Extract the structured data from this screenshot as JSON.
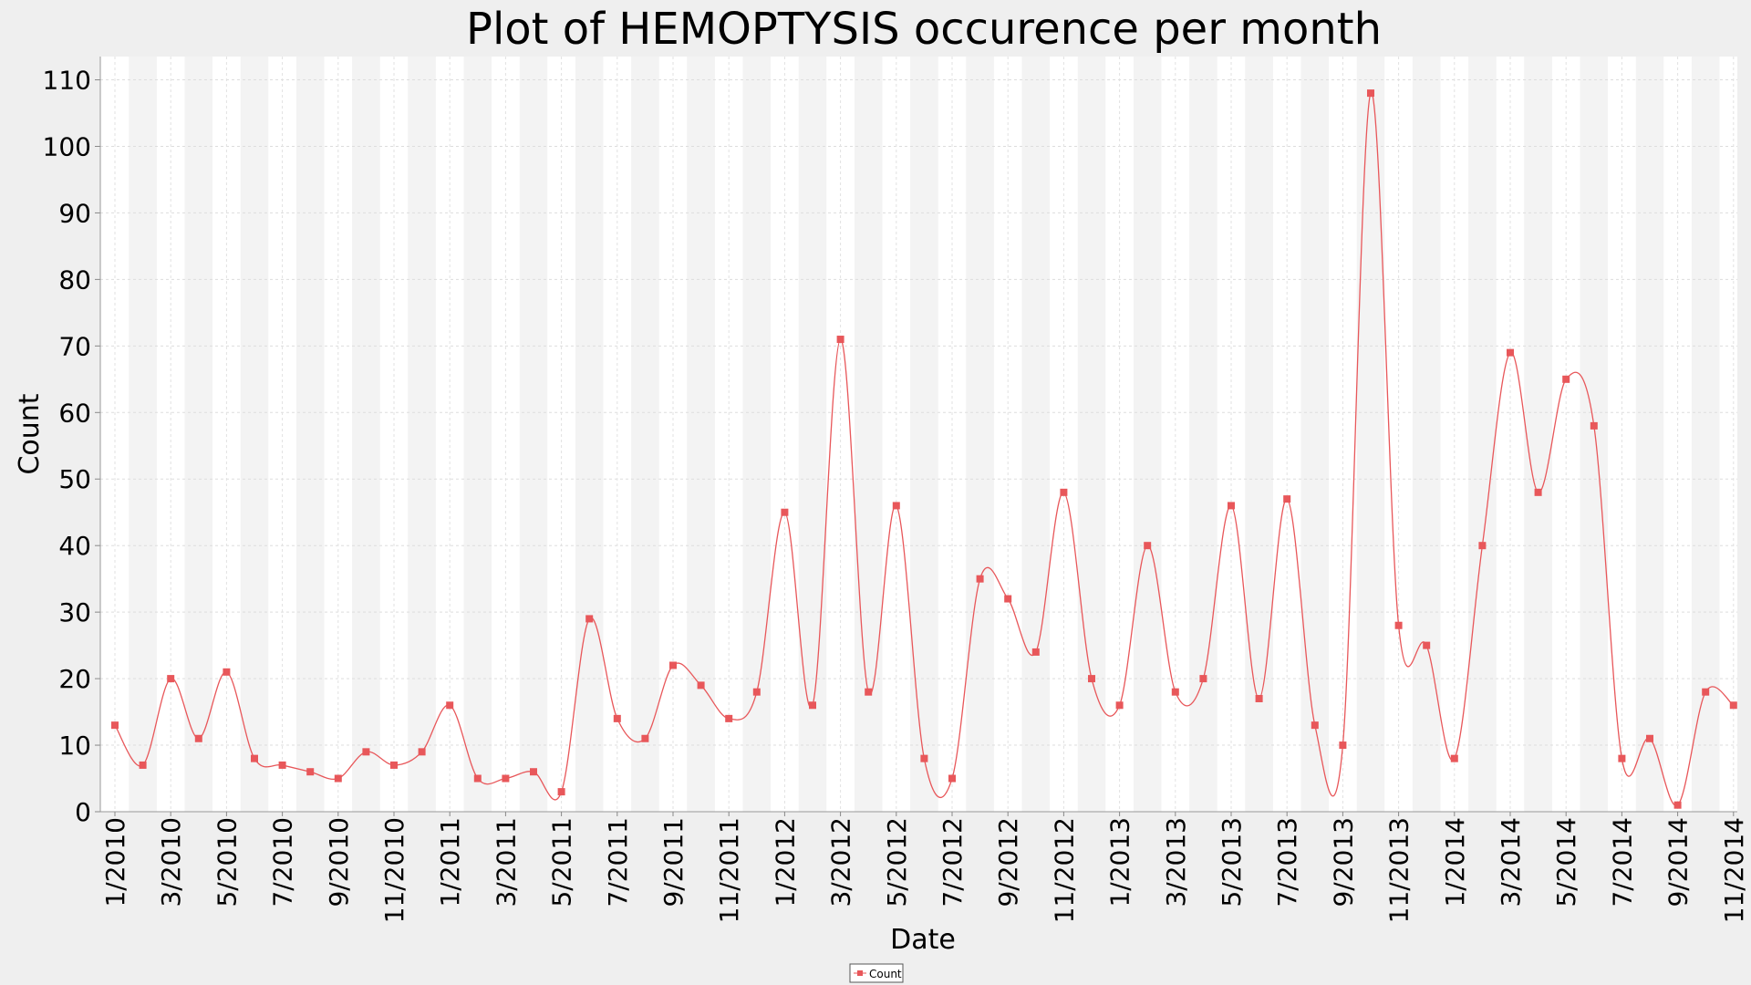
{
  "chart_data": {
    "type": "line",
    "title": "Plot of HEMOPTYSIS occurence per month",
    "xlabel": "Date",
    "ylabel": "Count",
    "ylim": [
      0,
      113.5
    ],
    "yticks": [
      0,
      10,
      20,
      30,
      40,
      50,
      60,
      70,
      80,
      90,
      100,
      110
    ],
    "grid": true,
    "legend_position": "bottom-center",
    "colors": {
      "series": "#e8575a",
      "band": "#f3f3f3",
      "plot_bg": "#ffffff",
      "page_bg": "#efefef"
    },
    "x": [
      "1/2010",
      "2/2010",
      "3/2010",
      "4/2010",
      "5/2010",
      "6/2010",
      "7/2010",
      "8/2010",
      "9/2010",
      "10/2010",
      "11/2010",
      "12/2010",
      "1/2011",
      "2/2011",
      "3/2011",
      "4/2011",
      "5/2011",
      "6/2011",
      "7/2011",
      "8/2011",
      "9/2011",
      "10/2011",
      "11/2011",
      "12/2011",
      "1/2012",
      "2/2012",
      "3/2012",
      "4/2012",
      "5/2012",
      "6/2012",
      "7/2012",
      "8/2012",
      "9/2012",
      "10/2012",
      "11/2012",
      "12/2012",
      "1/2013",
      "2/2013",
      "3/2013",
      "4/2013",
      "5/2013",
      "6/2013",
      "7/2013",
      "8/2013",
      "9/2013",
      "10/2013",
      "11/2013",
      "12/2013",
      "1/2014",
      "2/2014",
      "3/2014",
      "4/2014",
      "5/2014",
      "6/2014",
      "7/2014",
      "8/2014",
      "9/2014",
      "10/2014",
      "11/2014"
    ],
    "x_tick_labels": [
      "1/2010",
      "3/2010",
      "5/2010",
      "7/2010",
      "9/2010",
      "11/2010",
      "1/2011",
      "3/2011",
      "5/2011",
      "7/2011",
      "9/2011",
      "11/2011",
      "1/2012",
      "3/2012",
      "5/2012",
      "7/2012",
      "9/2012",
      "11/2012",
      "1/2013",
      "3/2013",
      "5/2013",
      "7/2013",
      "9/2013",
      "11/2013",
      "1/2014",
      "3/2014",
      "5/2014",
      "7/2014",
      "9/2014",
      "11/2014"
    ],
    "series": [
      {
        "name": "Count",
        "values": [
          13,
          7,
          20,
          11,
          21,
          8,
          7,
          6,
          5,
          9,
          7,
          9,
          16,
          5,
          5,
          6,
          3,
          29,
          14,
          11,
          22,
          19,
          14,
          18,
          45,
          16,
          71,
          18,
          46,
          8,
          5,
          35,
          32,
          24,
          48,
          20,
          16,
          40,
          18,
          20,
          46,
          17,
          47,
          13,
          10,
          108,
          28,
          25,
          8,
          40,
          69,
          48,
          65,
          58,
          8,
          11,
          1,
          18,
          16
        ]
      }
    ]
  }
}
